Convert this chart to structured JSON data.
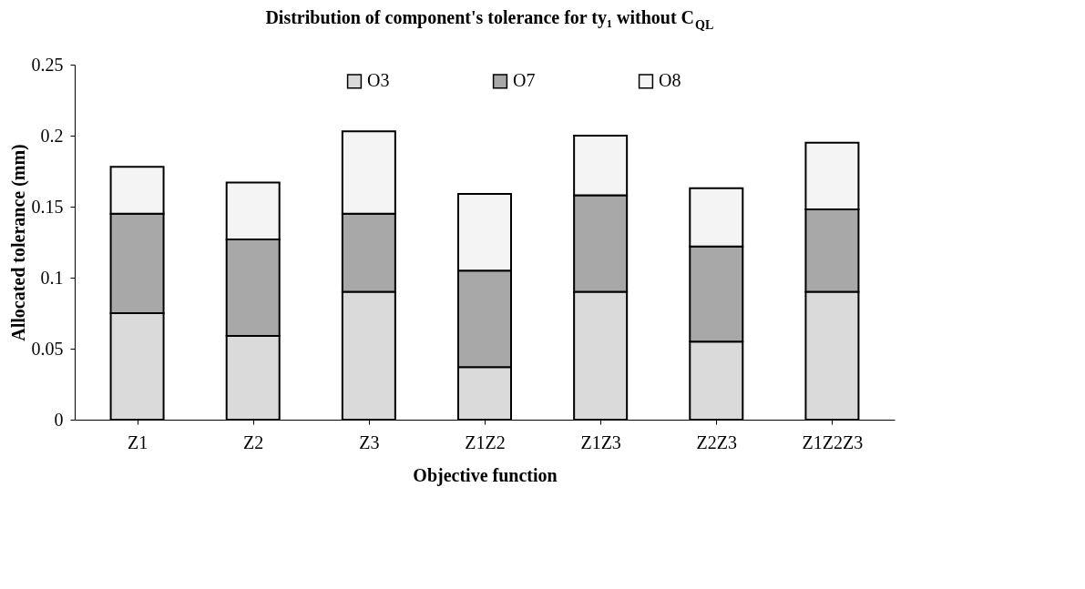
{
  "chart_data": {
    "type": "bar",
    "stacked": true,
    "title": "Distribution of component's tolerance for ty₁ without C$_{QL}$",
    "xlabel": "Objective function",
    "ylabel": "Allocated tolerance (mm)",
    "categories": [
      "Z1",
      "Z2",
      "Z3",
      "Z1Z2",
      "Z1Z3",
      "Z2Z3",
      "Z1Z2Z3"
    ],
    "series": [
      {
        "name": "O3",
        "color": "#dadada",
        "values": [
          0.075,
          0.059,
          0.09,
          0.037,
          0.09,
          0.055,
          0.09
        ]
      },
      {
        "name": "O7",
        "color": "#a8a8a8",
        "values": [
          0.07,
          0.068,
          0.055,
          0.068,
          0.068,
          0.067,
          0.058
        ]
      },
      {
        "name": "O8",
        "color": "#f4f4f4",
        "values": [
          0.033,
          0.04,
          0.058,
          0.054,
          0.042,
          0.041,
          0.047
        ]
      }
    ],
    "ylim": [
      0,
      0.25
    ],
    "yticks": [
      0,
      0.05,
      0.1,
      0.15,
      0.2,
      0.25
    ],
    "grid": false,
    "legend": "top"
  }
}
